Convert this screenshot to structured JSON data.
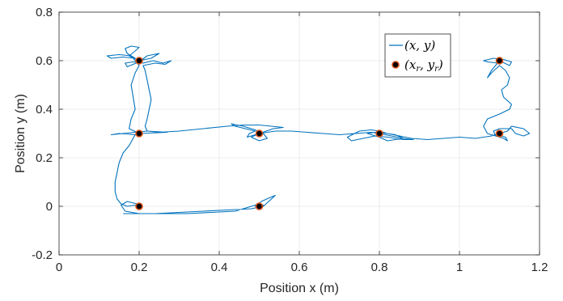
{
  "chart_data": {
    "type": "line",
    "xlabel": "Position x (m)",
    "ylabel": "Position y (m)",
    "xlim": [
      0,
      1.2
    ],
    "ylim": [
      -0.2,
      0.8
    ],
    "x_ticks": [
      "0",
      "0.2",
      "0.4",
      "0.6",
      "0.8",
      "1",
      "1.2"
    ],
    "y_ticks": [
      "-0.2",
      "0",
      "0.2",
      "0.4",
      "0.6",
      "0.8"
    ],
    "grid": true,
    "legend_position": "top-right",
    "series": [
      {
        "name": "(x, y)",
        "kind": "line",
        "color": "#0072BD",
        "points": [
          [
            0.16,
            -0.03
          ],
          [
            0.2,
            -0.03
          ],
          [
            0.24,
            -0.03
          ],
          [
            0.3,
            -0.025
          ],
          [
            0.36,
            -0.02
          ],
          [
            0.42,
            -0.015
          ],
          [
            0.48,
            -0.01
          ],
          [
            0.51,
            0.0
          ],
          [
            0.53,
            0.03
          ],
          [
            0.54,
            0.045
          ],
          [
            0.525,
            0.035
          ],
          [
            0.505,
            0.02
          ],
          [
            0.49,
            0.0
          ],
          [
            0.505,
            -0.005
          ],
          [
            0.51,
            0.005
          ],
          [
            0.5,
            0.01
          ],
          [
            0.48,
            0.0
          ],
          [
            0.44,
            -0.02
          ],
          [
            0.38,
            -0.025
          ],
          [
            0.32,
            -0.03
          ],
          [
            0.26,
            -0.03
          ],
          [
            0.2,
            -0.03
          ],
          [
            0.165,
            -0.02
          ],
          [
            0.155,
            0.005
          ],
          [
            0.17,
            0.02
          ],
          [
            0.195,
            0.01
          ],
          [
            0.2,
            -0.01
          ],
          [
            0.19,
            0.005
          ],
          [
            0.17,
            0.0
          ],
          [
            0.155,
            0.01
          ],
          [
            0.145,
            0.03
          ],
          [
            0.14,
            0.06
          ],
          [
            0.14,
            0.1
          ],
          [
            0.145,
            0.14
          ],
          [
            0.15,
            0.18
          ],
          [
            0.16,
            0.22
          ],
          [
            0.175,
            0.25
          ],
          [
            0.185,
            0.28
          ],
          [
            0.19,
            0.295
          ],
          [
            0.15,
            0.3
          ],
          [
            0.13,
            0.295
          ],
          [
            0.16,
            0.3
          ],
          [
            0.22,
            0.31
          ],
          [
            0.27,
            0.305
          ],
          [
            0.2,
            0.3
          ],
          [
            0.175,
            0.32
          ],
          [
            0.18,
            0.36
          ],
          [
            0.19,
            0.4
          ],
          [
            0.185,
            0.45
          ],
          [
            0.18,
            0.5
          ],
          [
            0.19,
            0.55
          ],
          [
            0.2,
            0.58
          ],
          [
            0.18,
            0.62
          ],
          [
            0.15,
            0.625
          ],
          [
            0.12,
            0.62
          ],
          [
            0.13,
            0.61
          ],
          [
            0.16,
            0.615
          ],
          [
            0.19,
            0.61
          ],
          [
            0.17,
            0.63
          ],
          [
            0.165,
            0.65
          ],
          [
            0.18,
            0.66
          ],
          [
            0.2,
            0.655
          ],
          [
            0.19,
            0.64
          ],
          [
            0.175,
            0.62
          ],
          [
            0.2,
            0.6
          ],
          [
            0.23,
            0.61
          ],
          [
            0.25,
            0.63
          ],
          [
            0.22,
            0.62
          ],
          [
            0.2,
            0.595
          ],
          [
            0.17,
            0.575
          ],
          [
            0.165,
            0.59
          ],
          [
            0.185,
            0.595
          ],
          [
            0.21,
            0.59
          ],
          [
            0.235,
            0.6
          ],
          [
            0.26,
            0.59
          ],
          [
            0.28,
            0.6
          ],
          [
            0.265,
            0.585
          ],
          [
            0.24,
            0.59
          ],
          [
            0.21,
            0.58
          ],
          [
            0.215,
            0.56
          ],
          [
            0.22,
            0.52
          ],
          [
            0.225,
            0.48
          ],
          [
            0.23,
            0.44
          ],
          [
            0.225,
            0.4
          ],
          [
            0.22,
            0.36
          ],
          [
            0.215,
            0.33
          ],
          [
            0.22,
            0.31
          ],
          [
            0.25,
            0.305
          ],
          [
            0.3,
            0.31
          ],
          [
            0.36,
            0.32
          ],
          [
            0.42,
            0.33
          ],
          [
            0.46,
            0.335
          ],
          [
            0.5,
            0.335
          ],
          [
            0.53,
            0.33
          ],
          [
            0.56,
            0.325
          ],
          [
            0.535,
            0.32
          ],
          [
            0.5,
            0.3
          ],
          [
            0.47,
            0.285
          ],
          [
            0.475,
            0.3
          ],
          [
            0.49,
            0.31
          ],
          [
            0.44,
            0.33
          ],
          [
            0.43,
            0.34
          ],
          [
            0.46,
            0.33
          ],
          [
            0.49,
            0.315
          ],
          [
            0.51,
            0.3
          ],
          [
            0.52,
            0.28
          ],
          [
            0.5,
            0.27
          ],
          [
            0.48,
            0.285
          ],
          [
            0.5,
            0.3
          ],
          [
            0.54,
            0.31
          ],
          [
            0.58,
            0.31
          ],
          [
            0.62,
            0.305
          ],
          [
            0.66,
            0.3
          ],
          [
            0.7,
            0.295
          ],
          [
            0.74,
            0.3
          ],
          [
            0.78,
            0.305
          ],
          [
            0.8,
            0.3
          ],
          [
            0.83,
            0.29
          ],
          [
            0.86,
            0.28
          ],
          [
            0.885,
            0.275
          ],
          [
            0.86,
            0.275
          ],
          [
            0.82,
            0.285
          ],
          [
            0.79,
            0.29
          ],
          [
            0.76,
            0.28
          ],
          [
            0.73,
            0.27
          ],
          [
            0.72,
            0.285
          ],
          [
            0.75,
            0.31
          ],
          [
            0.78,
            0.315
          ],
          [
            0.8,
            0.31
          ],
          [
            0.82,
            0.3
          ],
          [
            0.84,
            0.295
          ],
          [
            0.86,
            0.28
          ],
          [
            0.82,
            0.27
          ],
          [
            0.8,
            0.285
          ],
          [
            0.77,
            0.3
          ],
          [
            0.79,
            0.305
          ],
          [
            0.82,
            0.3
          ],
          [
            0.85,
            0.29
          ],
          [
            0.88,
            0.28
          ],
          [
            0.92,
            0.275
          ],
          [
            0.96,
            0.28
          ],
          [
            1.0,
            0.285
          ],
          [
            1.04,
            0.28
          ],
          [
            1.08,
            0.29
          ],
          [
            1.1,
            0.3
          ],
          [
            1.12,
            0.31
          ],
          [
            1.13,
            0.33
          ],
          [
            1.16,
            0.32
          ],
          [
            1.175,
            0.3
          ],
          [
            1.16,
            0.29
          ],
          [
            1.14,
            0.3
          ],
          [
            1.13,
            0.32
          ],
          [
            1.1,
            0.32
          ],
          [
            1.085,
            0.31
          ],
          [
            1.09,
            0.29
          ],
          [
            1.105,
            0.29
          ],
          [
            1.115,
            0.285
          ],
          [
            1.12,
            0.27
          ],
          [
            1.11,
            0.28
          ],
          [
            1.07,
            0.3
          ],
          [
            1.06,
            0.33
          ],
          [
            1.07,
            0.36
          ],
          [
            1.1,
            0.38
          ],
          [
            1.125,
            0.4
          ],
          [
            1.13,
            0.42
          ],
          [
            1.11,
            0.45
          ],
          [
            1.105,
            0.48
          ],
          [
            1.12,
            0.5
          ],
          [
            1.125,
            0.53
          ],
          [
            1.115,
            0.56
          ],
          [
            1.1,
            0.58
          ],
          [
            1.08,
            0.55
          ],
          [
            1.07,
            0.53
          ],
          [
            1.08,
            0.56
          ],
          [
            1.095,
            0.59
          ],
          [
            1.07,
            0.595
          ],
          [
            1.06,
            0.6
          ],
          [
            1.085,
            0.61
          ],
          [
            1.11,
            0.605
          ],
          [
            1.13,
            0.595
          ],
          [
            1.125,
            0.58
          ],
          [
            1.1,
            0.6
          ]
        ]
      },
      {
        "name": "(x_r, y_r)",
        "kind": "markers",
        "color": "#D95319",
        "points": [
          [
            0.2,
            0.6
          ],
          [
            0.2,
            0.3
          ],
          [
            0.2,
            0.0
          ],
          [
            0.5,
            0.3
          ],
          [
            0.5,
            0.0
          ],
          [
            0.8,
            0.3
          ],
          [
            1.1,
            0.3
          ],
          [
            1.1,
            0.6
          ]
        ]
      }
    ]
  }
}
